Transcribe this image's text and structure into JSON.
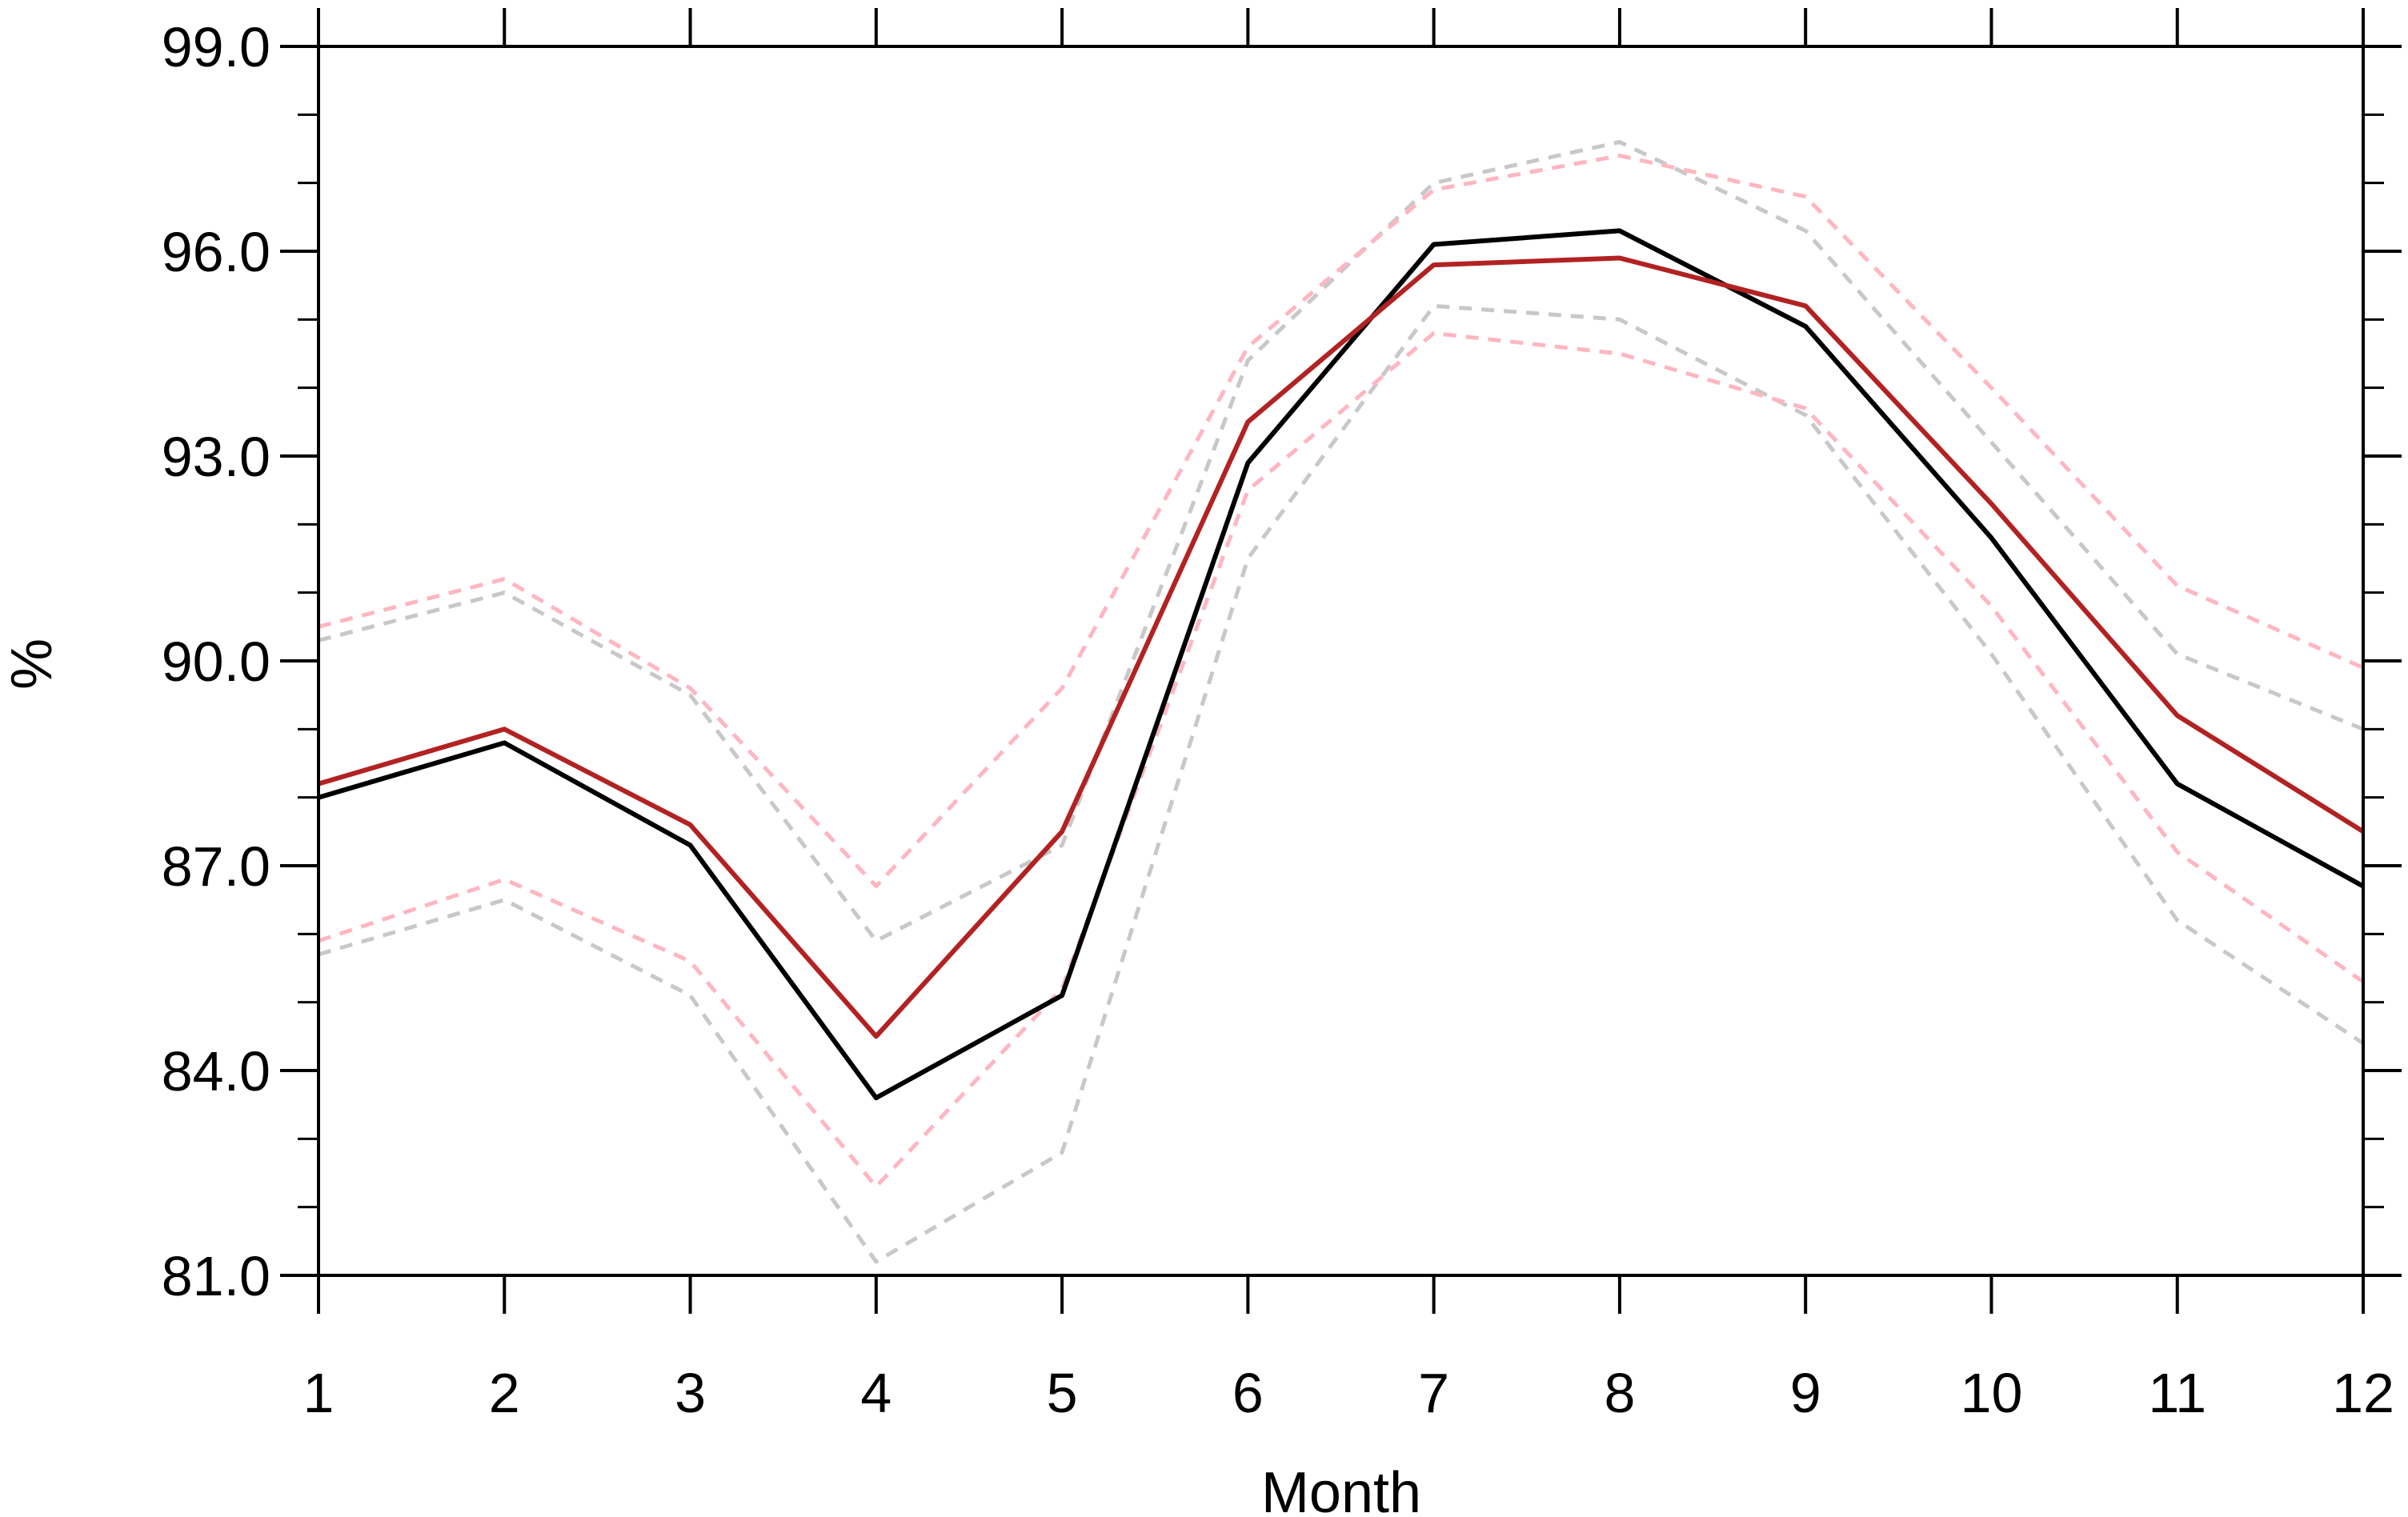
{
  "chart_data": {
    "type": "line",
    "title": "",
    "xlabel": "Month",
    "ylabel": "%",
    "x": [
      1,
      2,
      3,
      4,
      5,
      6,
      7,
      8,
      9,
      10,
      11,
      12
    ],
    "xlim": [
      1,
      12
    ],
    "ylim": [
      81.0,
      99.0
    ],
    "x_ticks": [
      "1",
      "2",
      "3",
      "4",
      "5",
      "6",
      "7",
      "8",
      "9",
      "10",
      "11",
      "12"
    ],
    "y_ticks": [
      "81.0",
      "84.0",
      "87.0",
      "90.0",
      "93.0",
      "96.0",
      "99.0"
    ],
    "y_tick_values": [
      81,
      84,
      87,
      90,
      93,
      96,
      99
    ],
    "y_minor_step": 1,
    "grid": false,
    "legend": "none",
    "series": [
      {
        "style": "solid",
        "color": "#000000",
        "values": [
          88.0,
          88.8,
          87.3,
          83.6,
          85.1,
          92.9,
          96.1,
          96.3,
          94.9,
          91.8,
          88.2,
          86.7
        ]
      },
      {
        "style": "solid",
        "color": "#b22222",
        "values": [
          88.2,
          89.0,
          87.6,
          84.5,
          87.5,
          93.5,
          95.8,
          95.9,
          95.2,
          92.3,
          89.2,
          87.5
        ]
      },
      {
        "style": "dashed",
        "color": "#c8c8c8",
        "values": [
          90.3,
          91.0,
          89.5,
          85.9,
          87.3,
          94.4,
          97.0,
          97.6,
          96.3,
          93.2,
          90.1,
          89.0
        ]
      },
      {
        "style": "dashed",
        "color": "#c8c8c8",
        "values": [
          85.7,
          86.5,
          85.1,
          81.2,
          82.8,
          91.5,
          95.2,
          95.0,
          93.6,
          90.1,
          86.2,
          84.4
        ]
      },
      {
        "style": "dashed",
        "color": "#ffb6c1",
        "values": [
          90.5,
          91.2,
          89.6,
          86.7,
          89.6,
          94.6,
          96.9,
          97.4,
          96.8,
          94.0,
          91.1,
          89.9
        ]
      },
      {
        "style": "dashed",
        "color": "#ffb6c1",
        "values": [
          85.9,
          86.8,
          85.6,
          82.3,
          85.2,
          92.5,
          94.8,
          94.5,
          93.7,
          90.8,
          87.2,
          85.3
        ]
      }
    ]
  }
}
